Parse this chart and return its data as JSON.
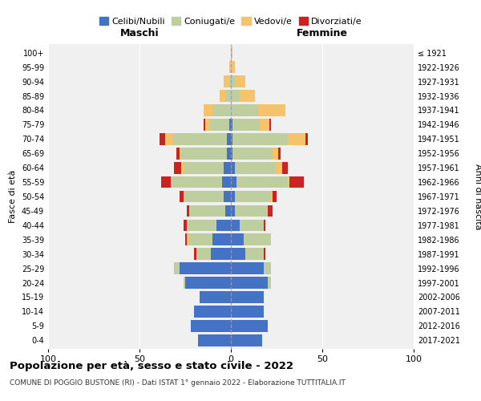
{
  "age_groups": [
    "0-4",
    "5-9",
    "10-14",
    "15-19",
    "20-24",
    "25-29",
    "30-34",
    "35-39",
    "40-44",
    "45-49",
    "50-54",
    "55-59",
    "60-64",
    "65-69",
    "70-74",
    "75-79",
    "80-84",
    "85-89",
    "90-94",
    "95-99",
    "100+"
  ],
  "birth_years": [
    "2017-2021",
    "2012-2016",
    "2007-2011",
    "2002-2006",
    "1997-2001",
    "1992-1996",
    "1987-1991",
    "1982-1986",
    "1977-1981",
    "1972-1976",
    "1967-1971",
    "1962-1966",
    "1957-1961",
    "1952-1956",
    "1947-1951",
    "1942-1946",
    "1937-1941",
    "1932-1936",
    "1927-1931",
    "1922-1926",
    "≤ 1921"
  ],
  "colors": {
    "celibe": "#4472C4",
    "coniugato": "#BFCE9E",
    "vedovo": "#F5C36A",
    "divorziato": "#CC2222"
  },
  "maschi": {
    "celibe": [
      18,
      22,
      20,
      17,
      25,
      28,
      11,
      10,
      8,
      3,
      4,
      5,
      4,
      2,
      2,
      1,
      0,
      0,
      0,
      0,
      0
    ],
    "coniugato": [
      0,
      0,
      0,
      0,
      1,
      3,
      8,
      13,
      16,
      20,
      22,
      28,
      22,
      25,
      30,
      11,
      10,
      3,
      1,
      0,
      0
    ],
    "vedovo": [
      0,
      0,
      0,
      0,
      0,
      0,
      0,
      1,
      0,
      0,
      0,
      0,
      1,
      1,
      4,
      2,
      5,
      3,
      3,
      1,
      0
    ],
    "divorziato": [
      0,
      0,
      0,
      0,
      0,
      0,
      1,
      1,
      2,
      1,
      2,
      5,
      4,
      2,
      3,
      1,
      0,
      0,
      0,
      0,
      0
    ]
  },
  "femmine": {
    "nubile": [
      17,
      20,
      18,
      18,
      20,
      18,
      8,
      7,
      5,
      2,
      2,
      3,
      2,
      1,
      1,
      1,
      0,
      0,
      0,
      0,
      0
    ],
    "coniugata": [
      0,
      0,
      0,
      0,
      2,
      4,
      10,
      15,
      13,
      18,
      20,
      28,
      22,
      22,
      30,
      15,
      15,
      5,
      2,
      0,
      0
    ],
    "vedova": [
      0,
      0,
      0,
      0,
      0,
      0,
      0,
      0,
      0,
      0,
      1,
      1,
      4,
      3,
      10,
      5,
      15,
      8,
      6,
      2,
      1
    ],
    "divorziata": [
      0,
      0,
      0,
      0,
      0,
      0,
      1,
      0,
      1,
      3,
      2,
      8,
      3,
      1,
      1,
      1,
      0,
      0,
      0,
      0,
      0
    ]
  },
  "xlim": 100,
  "title": "Popolazione per età, sesso e stato civile - 2022",
  "subtitle": "COMUNE DI POGGIO BUSTONE (RI) - Dati ISTAT 1° gennaio 2022 - Elaborazione TUTTITALIA.IT",
  "xlabel_left": "Maschi",
  "xlabel_right": "Femmine",
  "ylabel": "Fasce di età",
  "ylabel_right": "Anni di nascita",
  "bg_color": "#F0F0F0",
  "grid_color": "#CCCCCC",
  "legend_labels": [
    "Celibi/Nubili",
    "Coniugati/e",
    "Vedovi/e",
    "Divorziati/e"
  ]
}
